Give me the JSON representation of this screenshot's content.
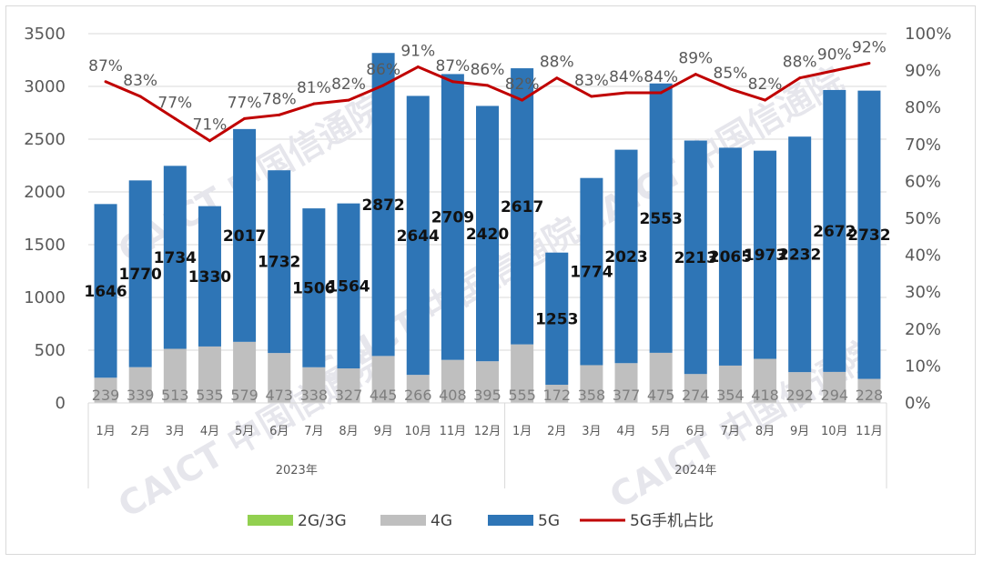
{
  "chart_data": {
    "type": "bar",
    "stacked": true,
    "categories": [
      "1月",
      "2月",
      "3月",
      "4月",
      "5月",
      "6月",
      "7月",
      "8月",
      "9月",
      "10月",
      "11月",
      "12月",
      "1月",
      "2月",
      "3月",
      "4月",
      "5月",
      "6月",
      "7月",
      "8月",
      "9月",
      "10月",
      "11月"
    ],
    "groups": [
      {
        "label": "2023年",
        "count": 12
      },
      {
        "label": "2024年",
        "count": 11
      }
    ],
    "series": [
      {
        "name": "2G/3G",
        "type": "bar",
        "color": "#92d050",
        "values": [
          0,
          0,
          0,
          0,
          0,
          0,
          0,
          0,
          0,
          0,
          0,
          0,
          0,
          0,
          0,
          0,
          0,
          0,
          0,
          0,
          0,
          0,
          0
        ]
      },
      {
        "name": "4G",
        "type": "bar",
        "color": "#bfbfbf",
        "values": [
          239,
          339,
          513,
          535,
          579,
          473,
          338,
          327,
          445,
          266,
          408,
          395,
          555,
          172,
          358,
          377,
          475,
          274,
          354,
          418,
          292,
          294,
          228
        ]
      },
      {
        "name": "5G",
        "type": "bar",
        "color": "#2e75b6",
        "values": [
          1646,
          1770,
          1734,
          1330,
          2017,
          1732,
          1506,
          1564,
          2872,
          2644,
          2709,
          2420,
          2617,
          1253,
          1774,
          2023,
          2553,
          2213,
          2065,
          1973,
          2232,
          2672,
          2732
        ]
      },
      {
        "name": "5G手机占比",
        "type": "line",
        "color": "#c00000",
        "axis": "right",
        "values": [
          87,
          83,
          77,
          71,
          77,
          78,
          81,
          82,
          86,
          91,
          87,
          86,
          82,
          88,
          83,
          84,
          84,
          89,
          85,
          82,
          88,
          90,
          92
        ]
      }
    ],
    "value_labels": {
      "4G": [
        "239",
        "339",
        "513",
        "535",
        "579",
        "473",
        "338",
        "327",
        "445",
        "266",
        "408",
        "395",
        "555",
        "172",
        "358",
        "377",
        "475",
        "274",
        "354",
        "418",
        "292",
        "294",
        "228"
      ],
      "5G": [
        "1646",
        "1770",
        "1734",
        "1330",
        "2017",
        "1732",
        "1506",
        "1564",
        "2872",
        "2644",
        "2709",
        "2420",
        "2617",
        "1253",
        "1774",
        "2023",
        "2553",
        "2213",
        "2065",
        "1973",
        "2232",
        "2672",
        "2732"
      ],
      "5G手机占比": [
        "87%",
        "83%",
        "77%",
        "71%",
        "77%",
        "78%",
        "81%",
        "82%",
        "86%",
        "91%",
        "87%",
        "86%",
        "82%",
        "88%",
        "83%",
        "84%",
        "84%",
        "89%",
        "85%",
        "82%",
        "88%",
        "90%",
        "92%"
      ]
    },
    "ylim": [
      0,
      3500
    ],
    "yticks": [
      "0",
      "500",
      "1000",
      "1500",
      "2000",
      "2500",
      "3000",
      "3500"
    ],
    "y2lim": [
      0,
      100
    ],
    "y2ticks": [
      "0%",
      "10%",
      "20%",
      "30%",
      "40%",
      "50%",
      "60%",
      "70%",
      "80%",
      "90%",
      "100%"
    ],
    "grid": true,
    "legend_position": "bottom"
  },
  "watermark": {
    "text": "CAICT 中国信通院"
  }
}
